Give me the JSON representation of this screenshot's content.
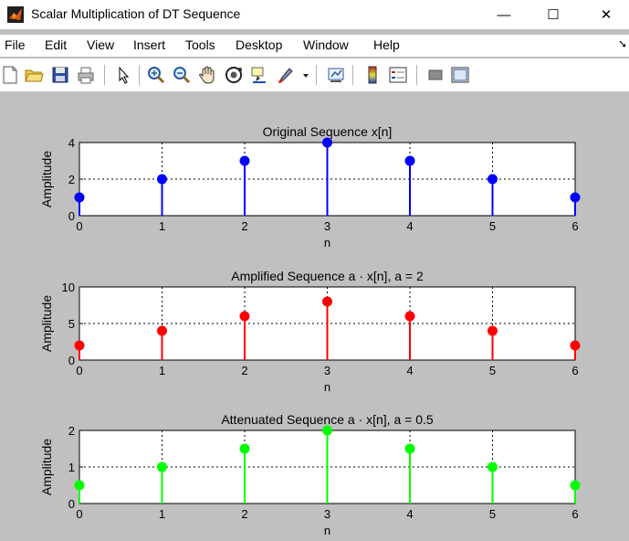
{
  "window": {
    "title": "Scalar Multiplication of DT Sequence",
    "minimize_glyph": "—",
    "maximize_glyph": "☐",
    "close_glyph": "✕"
  },
  "menu": {
    "items": [
      "File",
      "Edit",
      "View",
      "Insert",
      "Tools",
      "Desktop",
      "Window",
      "Help"
    ],
    "more_glyph": "➘"
  },
  "toolbar": {
    "icons": [
      "new-figure-icon",
      "open-file-icon",
      "save-icon",
      "print-icon",
      "pointer-icon",
      "zoom-in-icon",
      "zoom-out-icon",
      "pan-icon",
      "rotate-3d-icon",
      "data-cursor-icon",
      "brush-icon",
      "brush-dropdown-icon",
      "link-plot-icon",
      "insert-colorbar-icon",
      "insert-legend-icon",
      "hide-plot-tools-icon",
      "show-plot-tools-icon"
    ]
  },
  "chart_data": [
    {
      "type": "stem",
      "title": "Original Sequence x[n]",
      "xlabel": "n",
      "ylabel": "Amplitude",
      "x": [
        0,
        1,
        2,
        3,
        4,
        5,
        6
      ],
      "values": [
        1,
        2,
        3,
        4,
        3,
        2,
        1
      ],
      "xlim": [
        0,
        6
      ],
      "ylim": [
        0,
        4
      ],
      "yticks": [
        0,
        2,
        4
      ],
      "xticks": [
        0,
        1,
        2,
        3,
        4,
        5,
        6
      ],
      "grid": true,
      "color": "#0000ff"
    },
    {
      "type": "stem",
      "title": "Amplified Sequence a · x[n],  a = 2",
      "xlabel": "n",
      "ylabel": "Amplitude",
      "x": [
        0,
        1,
        2,
        3,
        4,
        5,
        6
      ],
      "values": [
        2,
        4,
        6,
        8,
        6,
        4,
        2
      ],
      "xlim": [
        0,
        6
      ],
      "ylim": [
        0,
        10
      ],
      "yticks": [
        0,
        5,
        10
      ],
      "xticks": [
        0,
        1,
        2,
        3,
        4,
        5,
        6
      ],
      "grid": true,
      "color": "#ff0000"
    },
    {
      "type": "stem",
      "title": "Attenuated Sequence a · x[n],  a = 0.5",
      "xlabel": "n",
      "ylabel": "Amplitude",
      "x": [
        0,
        1,
        2,
        3,
        4,
        5,
        6
      ],
      "values": [
        0.5,
        1,
        1.5,
        2,
        1.5,
        1,
        0.5
      ],
      "xlim": [
        0,
        6
      ],
      "ylim": [
        0,
        2
      ],
      "yticks": [
        0,
        1,
        2
      ],
      "xticks": [
        0,
        1,
        2,
        3,
        4,
        5,
        6
      ],
      "grid": true,
      "color": "#00ff00"
    }
  ]
}
